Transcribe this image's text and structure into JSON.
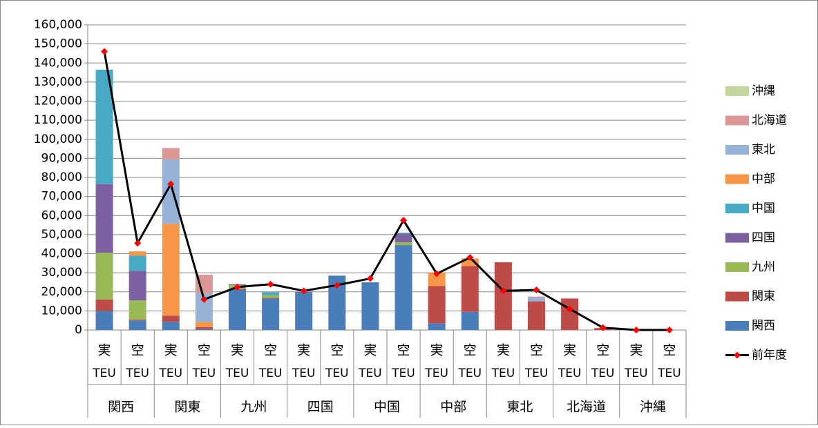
{
  "chart_data": {
    "type": "bar",
    "stacked": true,
    "grid": true,
    "legend": "right",
    "categories": [
      "実",
      "空",
      "実",
      "空",
      "実",
      "空",
      "実",
      "空",
      "実",
      "空",
      "実",
      "空",
      "実",
      "空",
      "実",
      "空",
      "実",
      "空"
    ],
    "category_units": [
      "TEU",
      "TEU",
      "TEU",
      "TEU",
      "TEU",
      "TEU",
      "TEU",
      "TEU",
      "TEU",
      "TEU",
      "TEU",
      "TEU",
      "TEU",
      "TEU",
      "TEU",
      "TEU",
      "TEU",
      "TEU"
    ],
    "groups": [
      "関西",
      "関東",
      "九州",
      "四国",
      "中国",
      "中部",
      "東北",
      "北海道",
      "沖縄"
    ],
    "ylim": [
      0,
      160000
    ],
    "yticks": [
      {
        "value": 0,
        "label": "0"
      },
      {
        "value": 10000,
        "label": "10,000"
      },
      {
        "value": 20000,
        "label": "20,000"
      },
      {
        "value": 30000,
        "label": "30,000"
      },
      {
        "value": 40000,
        "label": "40,000"
      },
      {
        "value": 50000,
        "label": "50,000"
      },
      {
        "value": 60000,
        "label": "60,000"
      },
      {
        "value": 70000,
        "label": "70,000"
      },
      {
        "value": 80000,
        "label": "80,000"
      },
      {
        "value": 90000,
        "label": "90,000"
      },
      {
        "value": 100000,
        "label": "100,000"
      },
      {
        "value": 110000,
        "label": "110,000"
      },
      {
        "value": 120000,
        "label": "120,000"
      },
      {
        "value": 130000,
        "label": "130,000"
      },
      {
        "value": 140000,
        "label": "140,000"
      },
      {
        "value": 150000,
        "label": "150,000"
      },
      {
        "value": 160000,
        "label": "160,000"
      }
    ],
    "series": [
      {
        "name": "関西",
        "color": "#4a7ebb",
        "values": [
          10000,
          5000,
          4300,
          500,
          21000,
          16500,
          19500,
          28500,
          25000,
          44500,
          3500,
          9500,
          0,
          0,
          0,
          0,
          0,
          0
        ]
      },
      {
        "name": "関東",
        "color": "#be4b48",
        "values": [
          6000,
          500,
          3200,
          1000,
          500,
          300,
          0,
          0,
          0,
          0,
          19500,
          24000,
          35500,
          15000,
          16500,
          1000,
          0,
          0
        ]
      },
      {
        "name": "九州",
        "color": "#98b954",
        "values": [
          24500,
          10000,
          0,
          0,
          2000,
          1500,
          0,
          0,
          0,
          1500,
          0,
          0,
          0,
          0,
          0,
          0,
          0,
          0
        ]
      },
      {
        "name": "四国",
        "color": "#7d60a0",
        "values": [
          36000,
          15500,
          0,
          0,
          500,
          0,
          500,
          0,
          0,
          4500,
          0,
          0,
          0,
          0,
          0,
          0,
          0,
          0
        ]
      },
      {
        "name": "中国",
        "color": "#46aac5",
        "values": [
          60000,
          8000,
          0,
          0,
          0,
          1500,
          0,
          0,
          0,
          500,
          0,
          0,
          0,
          0,
          0,
          0,
          0,
          0
        ]
      },
      {
        "name": "中部",
        "color": "#f79646",
        "values": [
          0,
          2200,
          48200,
          2700,
          0,
          0,
          0,
          0,
          0,
          0,
          7000,
          4000,
          0,
          0,
          0,
          0,
          0,
          0
        ]
      },
      {
        "name": "東北",
        "color": "#95b3d7",
        "values": [
          0,
          0,
          33700,
          15000,
          0,
          0,
          0,
          0,
          0,
          0,
          0,
          0,
          0,
          2000,
          0,
          0,
          0,
          0
        ]
      },
      {
        "name": "北海道",
        "color": "#d99795",
        "values": [
          0,
          0,
          6000,
          9800,
          0,
          0,
          0,
          0,
          0,
          0,
          0,
          0,
          0,
          500,
          0,
          0,
          0,
          0
        ]
      },
      {
        "name": "沖縄",
        "color": "#c3d69b",
        "values": [
          0,
          0,
          0,
          0,
          0,
          0,
          0,
          0,
          0,
          0,
          0,
          0,
          0,
          0,
          0,
          0,
          0,
          0
        ]
      }
    ],
    "line_series": {
      "name": "前年度",
      "color": "#000000",
      "marker_color": "#ff0000",
      "values": [
        146000,
        45500,
        76500,
        16000,
        22500,
        24000,
        20500,
        23500,
        27000,
        57500,
        29500,
        38000,
        20500,
        21000,
        11000,
        1200,
        0,
        0
      ]
    }
  }
}
